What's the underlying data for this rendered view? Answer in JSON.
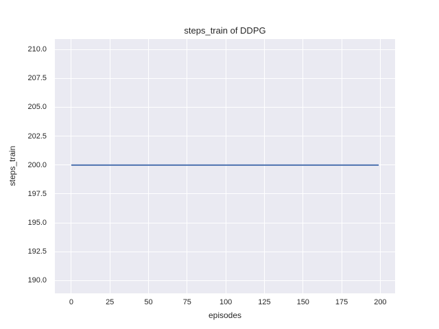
{
  "chart_data": {
    "type": "line",
    "title": "steps_train of DDPG",
    "xlabel": "episodes",
    "ylabel": "steps_train",
    "x_ticks": [
      0,
      25,
      50,
      75,
      100,
      125,
      150,
      175,
      200
    ],
    "x_tick_labels": [
      "0",
      "25",
      "50",
      "75",
      "100",
      "125",
      "150",
      "175",
      "200"
    ],
    "y_ticks": [
      190.0,
      192.5,
      195.0,
      197.5,
      200.0,
      202.5,
      205.0,
      207.5,
      210.0
    ],
    "y_tick_labels": [
      "190.0",
      "192.5",
      "195.0",
      "197.5",
      "200.0",
      "202.5",
      "205.0",
      "207.5",
      "210.0"
    ],
    "xlim": [
      -10.6,
      209.6
    ],
    "ylim": [
      188.9,
      210.9
    ],
    "grid": true,
    "legend_position": "none",
    "series": [
      {
        "name": "steps_train",
        "description": "constant value 200 for episodes 0 through 199",
        "x": [
          0,
          199
        ],
        "y": [
          200,
          200
        ],
        "color": "#4c72b0",
        "linewidth": 2
      }
    ],
    "colors": {
      "figure_bg": "#ffffff",
      "plot_bg": "#eaeaf2",
      "grid": "#ffffff",
      "text": "#262626"
    }
  }
}
